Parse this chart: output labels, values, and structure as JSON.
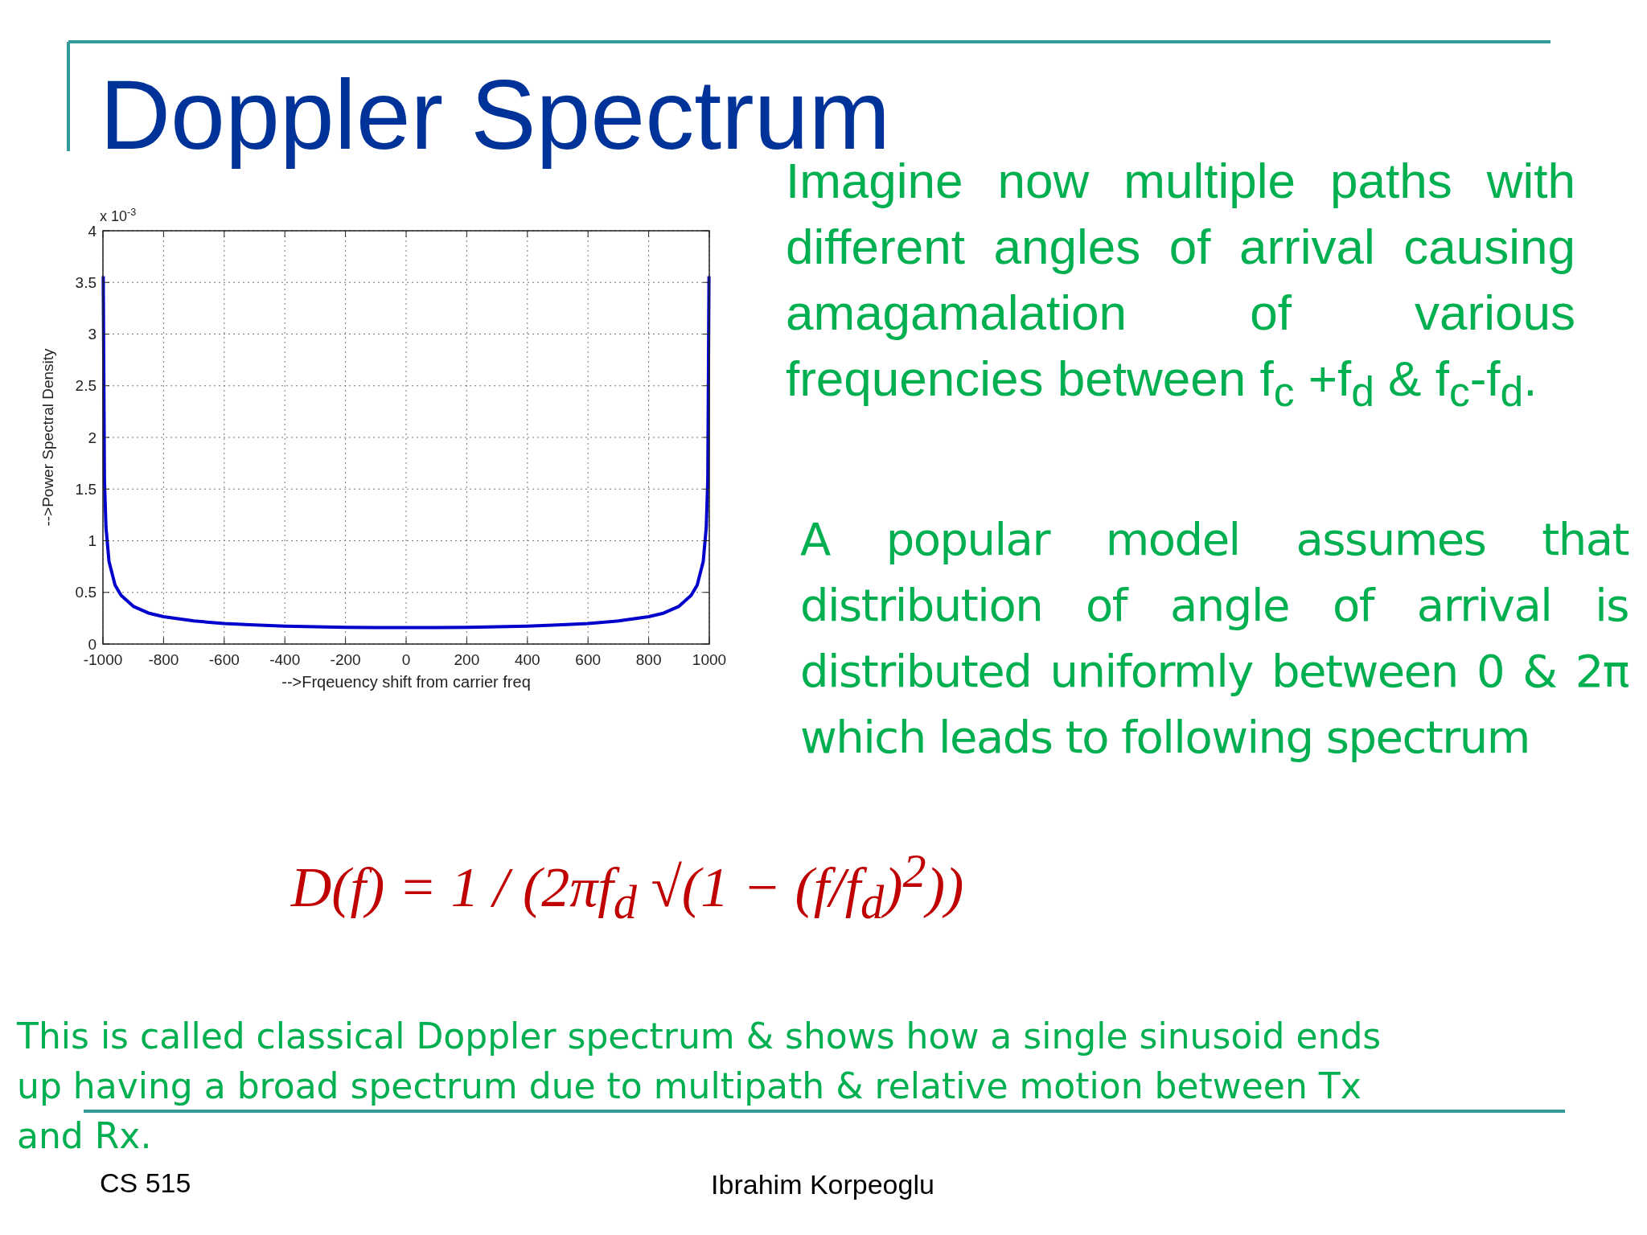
{
  "chart_data": {
    "type": "line",
    "title": "Doppler Spectrum",
    "xlabel": "-->Frqeuency shift from carrier freq",
    "ylabel": "-->Power Spectral Density",
    "x": [
      -999,
      -995,
      -990,
      -980,
      -960,
      -940,
      -900,
      -850,
      -800,
      -700,
      -600,
      -500,
      -400,
      -300,
      -200,
      -100,
      0,
      100,
      200,
      300,
      400,
      500,
      600,
      700,
      800,
      850,
      900,
      940,
      960,
      980,
      990,
      995,
      999
    ],
    "series": [
      {
        "color": "#0000cc",
        "values": [
          3.56,
          1.59,
          1.13,
          0.8,
          0.57,
          0.47,
          0.365,
          0.3,
          0.265,
          0.223,
          0.199,
          0.184,
          0.174,
          0.167,
          0.162,
          0.16,
          0.159,
          0.16,
          0.162,
          0.167,
          0.174,
          0.184,
          0.199,
          0.223,
          0.265,
          0.3,
          0.365,
          0.47,
          0.57,
          0.8,
          1.13,
          1.59,
          3.56
        ]
      }
    ],
    "xlim": [
      -1000,
      1000
    ],
    "xticks": [
      -1000,
      -800,
      -600,
      -400,
      -200,
      0,
      200,
      400,
      600,
      800,
      1000
    ],
    "ylim": [
      0,
      4
    ],
    "yticks": [
      0,
      0.5,
      1,
      1.5,
      2,
      2.5,
      3,
      3.5,
      4
    ],
    "grid": true,
    "marker": "none",
    "line_style": "solid",
    "annotations": [
      "Imagine now multiple paths with different angles of arrival causing amagamalation of various frequencies between f$_{c}$ +f$_{d}$ & f$_{c}$-f$_{d}$.",
      "A popular model assumes that distribution of angle of arrival is distributed uniformly between 0 & 2π which leads to following spectrum",
      "D(f) = 1 / (2πf$_{d}$ √(1 − (f/f$_{d}$)$^{2}$))",
      "This is called classical Doppler spectrum & shows how a single sinusoid ends up having a broad spectrum due to multipath & relative motion between Tx and Rx.",
      "CS 515",
      "Ibrahim Korpeoglu",
      "x 10$^{-3}$"
    ]
  }
}
